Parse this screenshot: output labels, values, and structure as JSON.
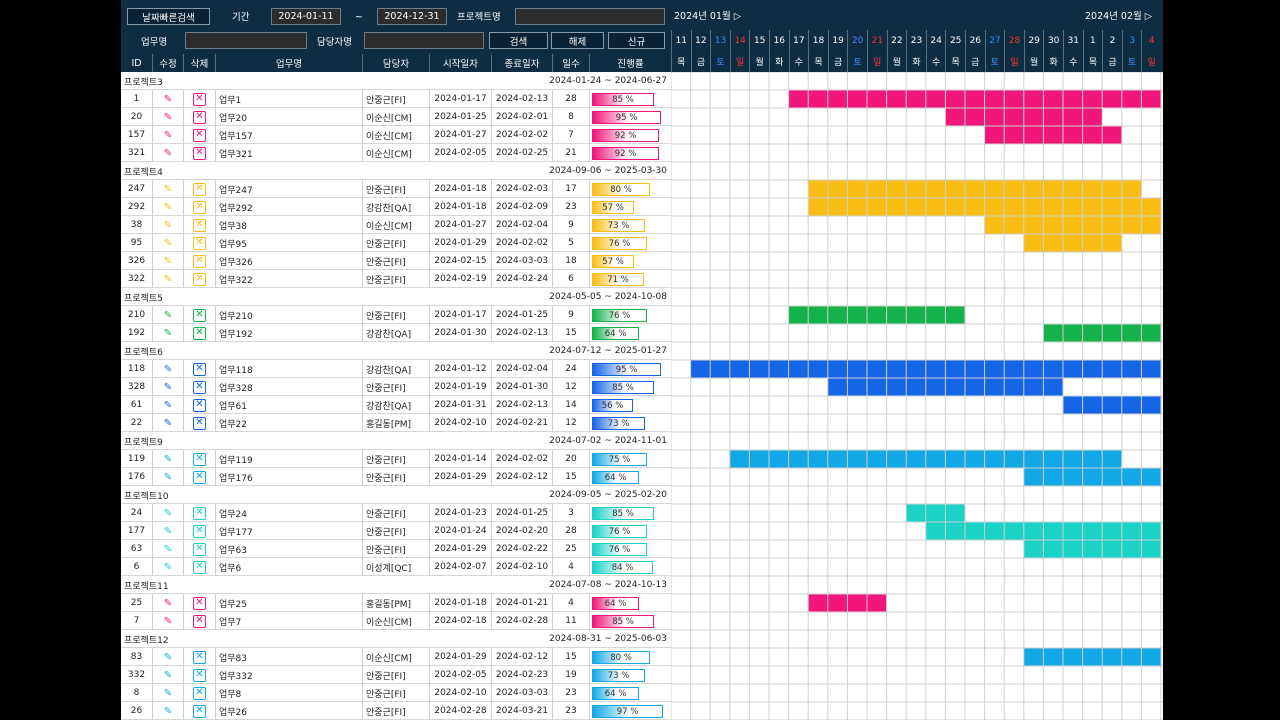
{
  "controls": {
    "quick_search": "날짜빠른검색",
    "period_label": "기간",
    "date_from": "2024-01-11",
    "tilde": "~",
    "date_to": "2024-12-31",
    "project_label": "프로젝트명",
    "project_value": "",
    "task_label": "업무명",
    "task_value": "",
    "owner_label": "담당자명",
    "owner_value": "",
    "search": "검색",
    "clear": "해제",
    "new": "신규"
  },
  "columns": {
    "id": "ID",
    "edit": "수정",
    "del": "삭제",
    "name": "업무명",
    "owner": "담당자",
    "start": "시작일자",
    "end": "종료일자",
    "days": "일수",
    "progress": "진행률"
  },
  "gantt": {
    "months": [
      {
        "label": "2024년 01월 ▷"
      },
      {
        "label": "2024년 02월 ▷"
      }
    ],
    "days": [
      "11",
      "12",
      "13",
      "14",
      "15",
      "16",
      "17",
      "18",
      "19",
      "20",
      "21",
      "22",
      "23",
      "24",
      "25",
      "26",
      "27",
      "28",
      "29",
      "30",
      "31",
      "1",
      "2",
      "3",
      "4"
    ],
    "weekdays": [
      "목",
      "금",
      "토",
      "일",
      "월",
      "화",
      "수",
      "목",
      "금",
      "토",
      "일",
      "월",
      "화",
      "수",
      "목",
      "금",
      "토",
      "일",
      "월",
      "화",
      "수",
      "목",
      "금",
      "토",
      "일"
    ]
  },
  "groups": [
    {
      "name": "프로젝트3",
      "period": "2024-01-24 ~ 2024-06-27",
      "color": "#f0167a",
      "tasks": [
        {
          "id": "1",
          "name": "업무1",
          "owner": "안중근[FI]",
          "start": "2024-01-17",
          "end": "2024-02-13",
          "days": "28",
          "progress": "85 %",
          "pct": 85
        },
        {
          "id": "20",
          "name": "업무20",
          "owner": "이순신[CM]",
          "start": "2024-01-25",
          "end": "2024-02-01",
          "days": "8",
          "progress": "95 %",
          "pct": 95
        },
        {
          "id": "157",
          "name": "업무157",
          "owner": "이순신[CM]",
          "start": "2024-01-27",
          "end": "2024-02-02",
          "days": "7",
          "progress": "92 %",
          "pct": 92
        },
        {
          "id": "321",
          "name": "업무321",
          "owner": "이순신[CM]",
          "start": "2024-02-05",
          "end": "2024-02-25",
          "days": "21",
          "progress": "92 %",
          "pct": 92
        }
      ]
    },
    {
      "name": "프로젝트4",
      "period": "2024-09-06 ~ 2025-03-30",
      "color": "#f9bd14",
      "tasks": [
        {
          "id": "247",
          "name": "업무247",
          "owner": "안중근[FI]",
          "start": "2024-01-18",
          "end": "2024-02-03",
          "days": "17",
          "progress": "80 %",
          "pct": 80
        },
        {
          "id": "292",
          "name": "업무292",
          "owner": "강감찬[QA]",
          "start": "2024-01-18",
          "end": "2024-02-09",
          "days": "23",
          "progress": "57 %",
          "pct": 57
        },
        {
          "id": "38",
          "name": "업무38",
          "owner": "이순신[CM]",
          "start": "2024-01-27",
          "end": "2024-02-04",
          "days": "9",
          "progress": "73 %",
          "pct": 73
        },
        {
          "id": "95",
          "name": "업무95",
          "owner": "안중근[FI]",
          "start": "2024-01-29",
          "end": "2024-02-02",
          "days": "5",
          "progress": "76 %",
          "pct": 76
        },
        {
          "id": "326",
          "name": "업무326",
          "owner": "안중근[FI]",
          "start": "2024-02-15",
          "end": "2024-03-03",
          "days": "18",
          "progress": "57 %",
          "pct": 57
        },
        {
          "id": "322",
          "name": "업무322",
          "owner": "안중근[FI]",
          "start": "2024-02-19",
          "end": "2024-02-24",
          "days": "6",
          "progress": "71 %",
          "pct": 71
        }
      ]
    },
    {
      "name": "프로젝트5",
      "period": "2024-05-05 ~ 2024-10-08",
      "color": "#14b24a",
      "tasks": [
        {
          "id": "210",
          "name": "업무210",
          "owner": "안중근[FI]",
          "start": "2024-01-17",
          "end": "2024-01-25",
          "days": "9",
          "progress": "76 %",
          "pct": 76
        },
        {
          "id": "192",
          "name": "업무192",
          "owner": "강감찬[QA]",
          "start": "2024-01-30",
          "end": "2024-02-13",
          "days": "15",
          "progress": "64 %",
          "pct": 64
        }
      ]
    },
    {
      "name": "프로젝트6",
      "period": "2024-07-12 ~ 2025-01-27",
      "color": "#1665e6",
      "tasks": [
        {
          "id": "118",
          "name": "업무118",
          "owner": "강감찬[QA]",
          "start": "2024-01-12",
          "end": "2024-02-04",
          "days": "24",
          "progress": "95 %",
          "pct": 95
        },
        {
          "id": "328",
          "name": "업무328",
          "owner": "안중근[FI]",
          "start": "2024-01-19",
          "end": "2024-01-30",
          "days": "12",
          "progress": "85 %",
          "pct": 85
        },
        {
          "id": "61",
          "name": "업무61",
          "owner": "강감찬[QA]",
          "start": "2024-01-31",
          "end": "2024-02-13",
          "days": "14",
          "progress": "56 %",
          "pct": 56
        },
        {
          "id": "22",
          "name": "업무22",
          "owner": "홍길동[PM]",
          "start": "2024-02-10",
          "end": "2024-02-21",
          "days": "12",
          "progress": "73 %",
          "pct": 73
        }
      ]
    },
    {
      "name": "프로젝트9",
      "period": "2024-07-02 ~ 2024-11-01",
      "color": "#12a8e6",
      "tasks": [
        {
          "id": "119",
          "name": "업무119",
          "owner": "안중근[FI]",
          "start": "2024-01-14",
          "end": "2024-02-02",
          "days": "20",
          "progress": "75 %",
          "pct": 75
        },
        {
          "id": "176",
          "name": "업무176",
          "owner": "안중근[FI]",
          "start": "2024-01-29",
          "end": "2024-02-12",
          "days": "15",
          "progress": "64 %",
          "pct": 64
        }
      ]
    },
    {
      "name": "프로젝트10",
      "period": "2024-09-05 ~ 2025-02-20",
      "color": "#1ad2c6",
      "tasks": [
        {
          "id": "24",
          "name": "업무24",
          "owner": "안중근[FI]",
          "start": "2024-01-23",
          "end": "2024-01-25",
          "days": "3",
          "progress": "85 %",
          "pct": 85
        },
        {
          "id": "177",
          "name": "업무177",
          "owner": "안중근[FI]",
          "start": "2024-01-24",
          "end": "2024-02-20",
          "days": "28",
          "progress": "76 %",
          "pct": 76
        },
        {
          "id": "63",
          "name": "업무63",
          "owner": "안중근[FI]",
          "start": "2024-01-29",
          "end": "2024-02-22",
          "days": "25",
          "progress": "76 %",
          "pct": 76
        },
        {
          "id": "6",
          "name": "업무6",
          "owner": "이성계[QC]",
          "start": "2024-02-07",
          "end": "2024-02-10",
          "days": "4",
          "progress": "84 %",
          "pct": 84
        }
      ]
    },
    {
      "name": "프로젝트11",
      "period": "2024-07-08 ~ 2024-10-13",
      "color": "#f0167a",
      "tasks": [
        {
          "id": "25",
          "name": "업무25",
          "owner": "홍길동[PM]",
          "start": "2024-01-18",
          "end": "2024-01-21",
          "days": "4",
          "progress": "64 %",
          "pct": 64
        },
        {
          "id": "7",
          "name": "업무7",
          "owner": "이순신[CM]",
          "start": "2024-02-18",
          "end": "2024-02-28",
          "days": "11",
          "progress": "85 %",
          "pct": 85
        }
      ]
    },
    {
      "name": "프로젝트12",
      "period": "2024-08-31 ~ 2025-06-03",
      "color": "#12a8e6",
      "tasks": [
        {
          "id": "83",
          "name": "업무83",
          "owner": "이순신[CM]",
          "start": "2024-01-29",
          "end": "2024-02-12",
          "days": "15",
          "progress": "80 %",
          "pct": 80
        },
        {
          "id": "332",
          "name": "업무332",
          "owner": "안중근[FI]",
          "start": "2024-02-05",
          "end": "2024-02-23",
          "days": "19",
          "progress": "73 %",
          "pct": 73
        },
        {
          "id": "8",
          "name": "업무8",
          "owner": "안중근[FI]",
          "start": "2024-02-10",
          "end": "2024-03-03",
          "days": "23",
          "progress": "64 %",
          "pct": 64
        },
        {
          "id": "26",
          "name": "업무26",
          "owner": "안중근[FI]",
          "start": "2024-02-28",
          "end": "2024-03-21",
          "days": "23",
          "progress": "97 %",
          "pct": 97
        }
      ]
    }
  ],
  "icons": {
    "edit": "pencil-icon",
    "delete": "x-box-icon"
  }
}
